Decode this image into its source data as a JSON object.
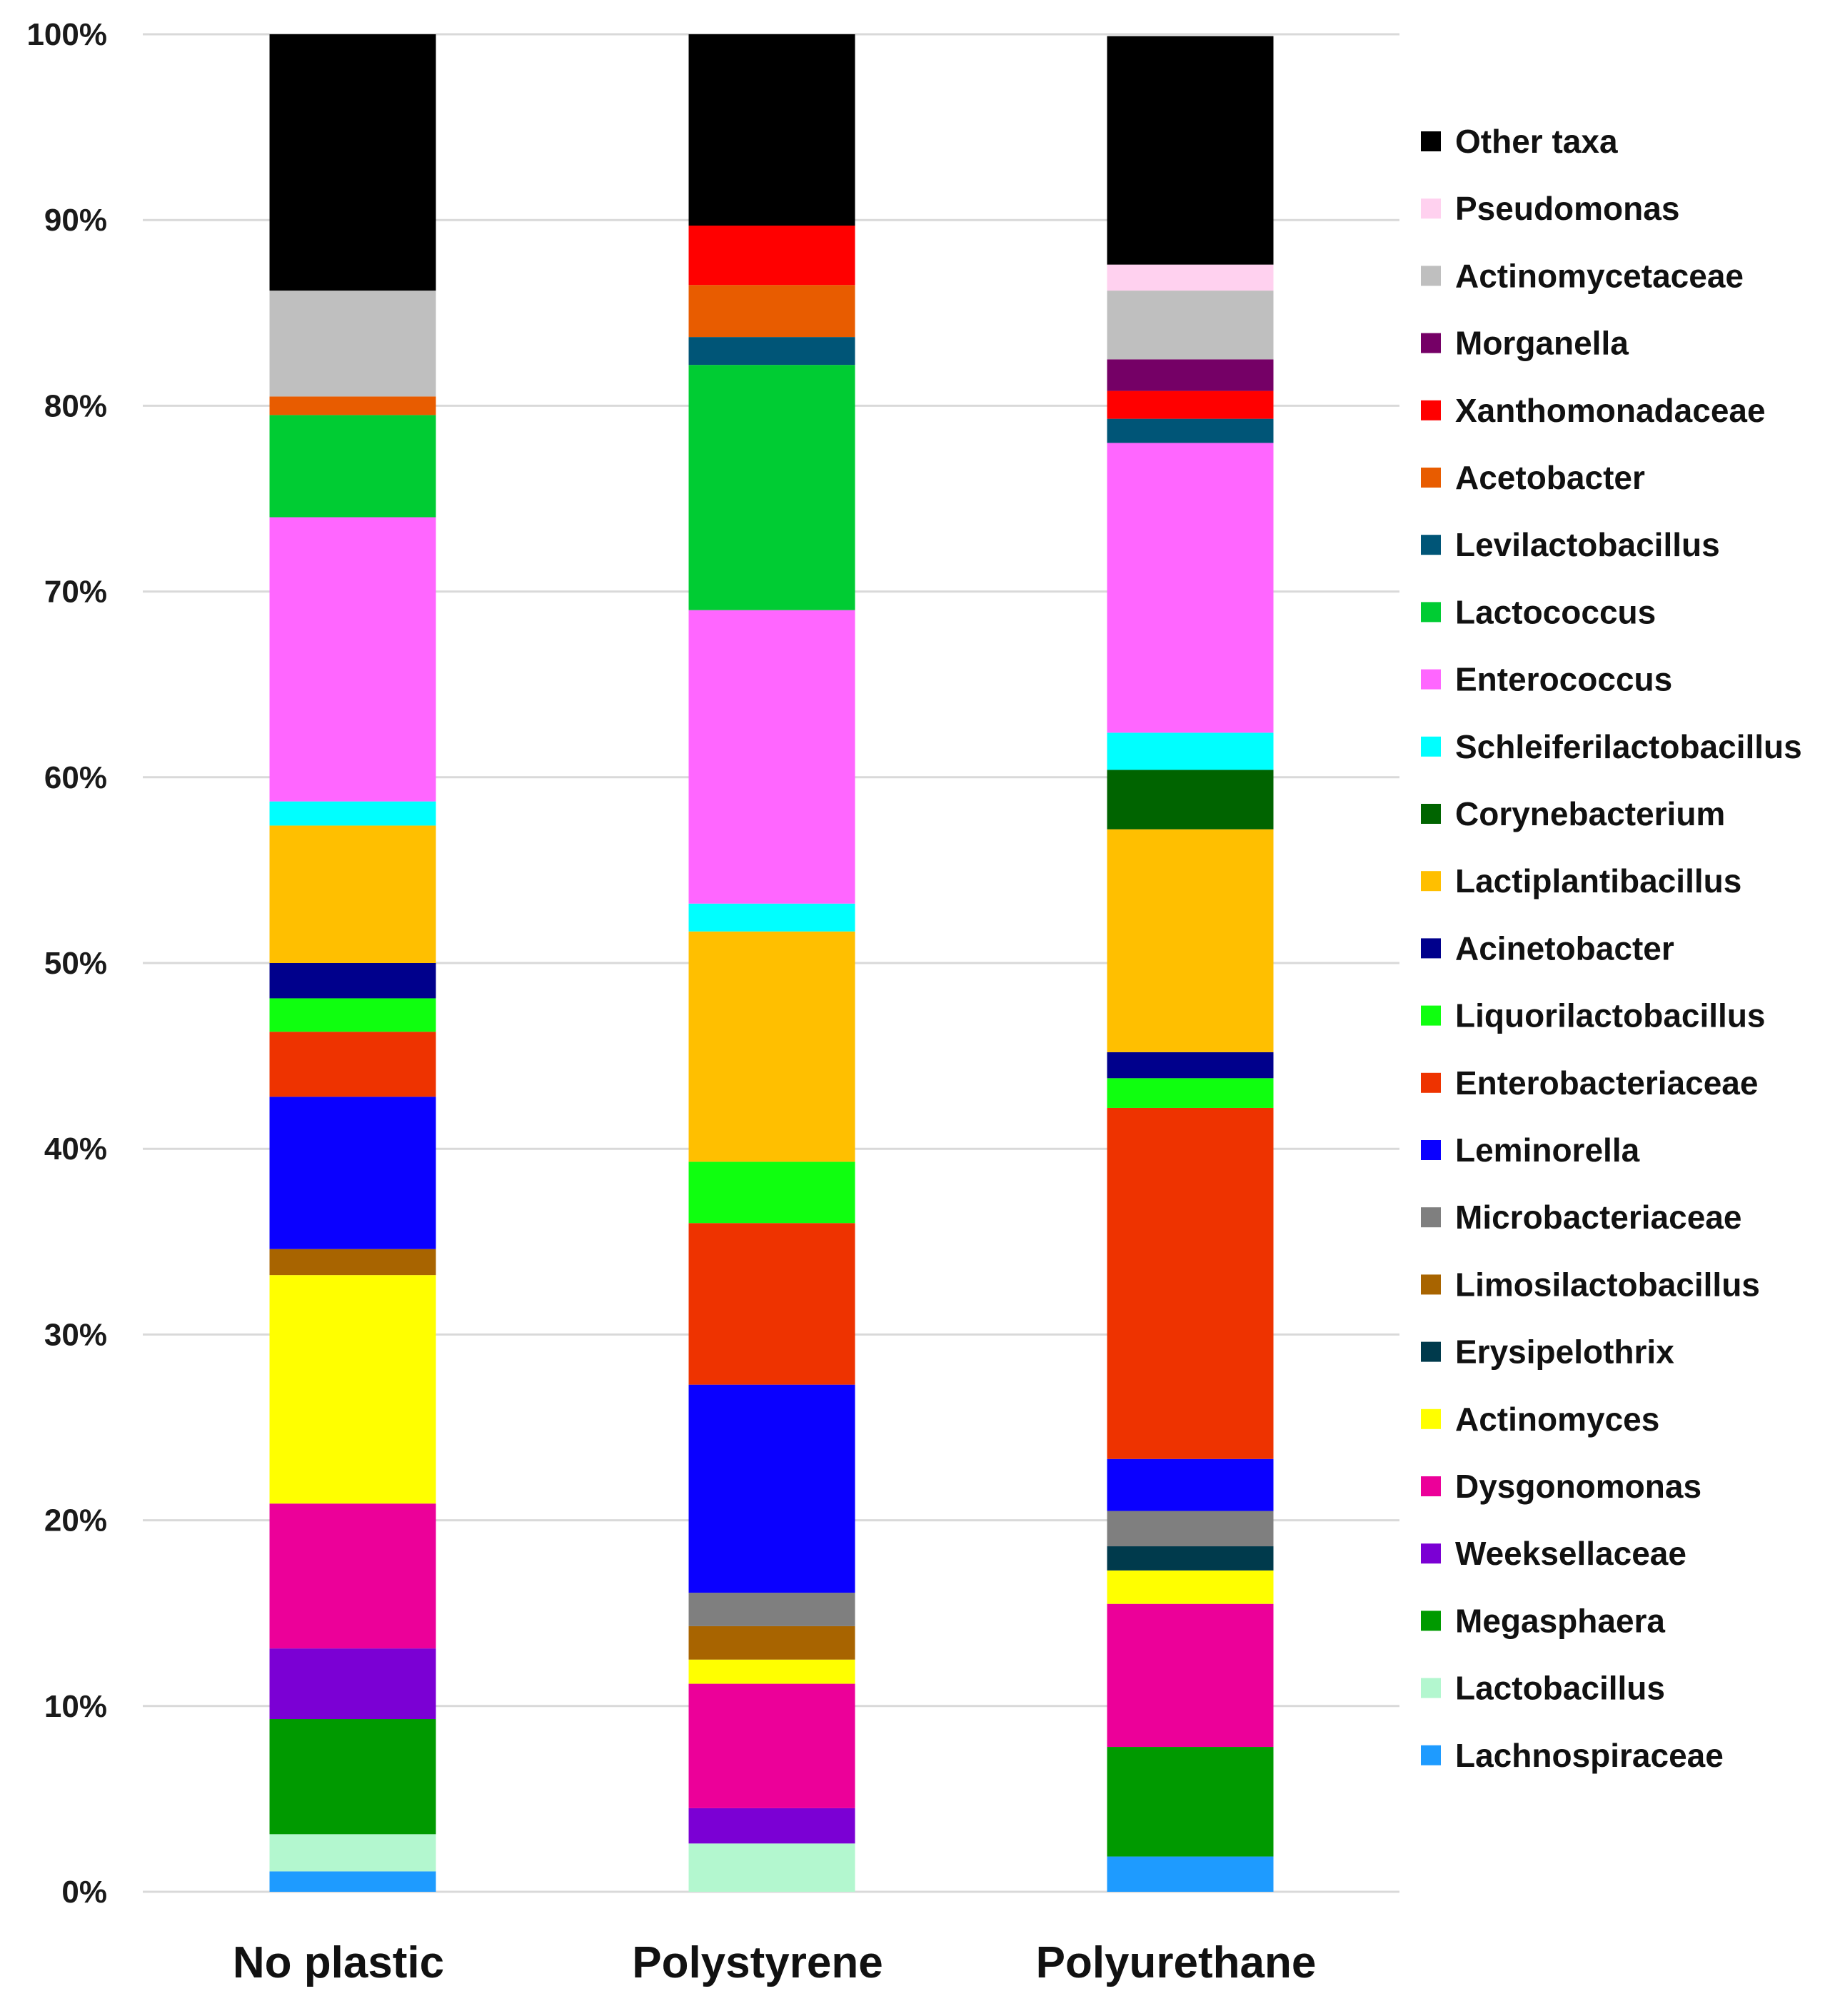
{
  "chart_data": {
    "type": "bar",
    "stacked": true,
    "percent": true,
    "title": "",
    "xlabel": "",
    "ylabel": "",
    "ylim": [
      0,
      100
    ],
    "yticks": [
      "0%",
      "10%",
      "20%",
      "30%",
      "40%",
      "50%",
      "60%",
      "70%",
      "80%",
      "90%",
      "100%"
    ],
    "grid": true,
    "legend_position": "right",
    "categories": [
      "No plastic",
      "Polystyrene",
      "Polyurethane"
    ],
    "series": [
      {
        "name": "Lachnospiraceae",
        "color": "#1e9bff",
        "values": [
          1.1,
          0,
          1.9
        ]
      },
      {
        "name": "Lactobacillus",
        "color": "#b3f7cf",
        "values": [
          2.0,
          2.6,
          0
        ]
      },
      {
        "name": "Megasphaera",
        "color": "#009a00",
        "values": [
          6.2,
          0,
          5.9
        ]
      },
      {
        "name": "Weeksellaceae",
        "color": "#7b00d4",
        "values": [
          3.8,
          1.9,
          0
        ]
      },
      {
        "name": "Dysgonomonas",
        "color": "#ec0099",
        "values": [
          7.8,
          6.7,
          7.7
        ]
      },
      {
        "name": "Actinomyces",
        "color": "#ffff00",
        "values": [
          12.3,
          1.3,
          1.8
        ]
      },
      {
        "name": "Erysipelothrix",
        "color": "#003a4c",
        "values": [
          0,
          0,
          1.3
        ]
      },
      {
        "name": "Limosilactobacillus",
        "color": "#a86400",
        "values": [
          1.4,
          1.8,
          0
        ]
      },
      {
        "name": "Microbacteriaceae",
        "color": "#7f7f7f",
        "values": [
          0,
          1.8,
          1.9
        ]
      },
      {
        "name": "Leminorella",
        "color": "#0a00ff",
        "values": [
          8.2,
          11.2,
          2.8
        ]
      },
      {
        "name": "Enterobacteriaceae",
        "color": "#ee3300",
        "values": [
          3.5,
          8.7,
          18.9
        ]
      },
      {
        "name": "Liquorilactobacillus",
        "color": "#0fff0f",
        "values": [
          1.8,
          3.3,
          1.6
        ]
      },
      {
        "name": "Acinetobacter",
        "color": "#00008c",
        "values": [
          1.9,
          0,
          1.4
        ]
      },
      {
        "name": "Lactiplantibacillus",
        "color": "#ffbf00",
        "values": [
          7.4,
          12.4,
          12.0
        ]
      },
      {
        "name": "Corynebacterium",
        "color": "#006400",
        "values": [
          0,
          0,
          3.2
        ]
      },
      {
        "name": "Schleiferilactobacillus",
        "color": "#00ffff",
        "values": [
          1.3,
          1.5,
          2.0
        ]
      },
      {
        "name": "Enterococcus",
        "color": "#ff66ff",
        "values": [
          15.3,
          15.8,
          15.6
        ]
      },
      {
        "name": "Lactococcus",
        "color": "#00cc33",
        "values": [
          5.5,
          13.2,
          0
        ]
      },
      {
        "name": "Levilactobacillus",
        "color": "#005577",
        "values": [
          0,
          1.5,
          1.3
        ]
      },
      {
        "name": "Acetobacter",
        "color": "#e85c00",
        "values": [
          1.0,
          2.8,
          0
        ]
      },
      {
        "name": "Xanthomonadaceae",
        "color": "#ff0000",
        "values": [
          0,
          3.2,
          1.5
        ]
      },
      {
        "name": "Morganella",
        "color": "#750066",
        "values": [
          0,
          0,
          1.7
        ]
      },
      {
        "name": "Actinomycetaceae",
        "color": "#bfbfbf",
        "values": [
          5.7,
          0,
          3.7
        ]
      },
      {
        "name": "Pseudomonas",
        "color": "#ffd1ef",
        "values": [
          0,
          0,
          1.4
        ]
      },
      {
        "name": "Other taxa",
        "color": "#000000",
        "values": [
          13.8,
          10.3,
          12.3
        ]
      }
    ],
    "legend_order": [
      "Other taxa",
      "Pseudomonas",
      "Actinomycetaceae",
      "Morganella",
      "Xanthomonadaceae",
      "Acetobacter",
      "Levilactobacillus",
      "Lactococcus",
      "Enterococcus",
      "Schleiferilactobacillus",
      "Corynebacterium",
      "Lactiplantibacillus",
      "Acinetobacter",
      "Liquorilactobacillus",
      "Enterobacteriaceae",
      "Leminorella",
      "Microbacteriaceae",
      "Limosilactobacillus",
      "Erysipelothrix",
      "Actinomyces",
      "Dysgonomonas",
      "Weeksellaceae",
      "Megasphaera",
      "Lactobacillus",
      "Lachnospiraceae"
    ],
    "gridline_color": "#d9d9d9"
  }
}
